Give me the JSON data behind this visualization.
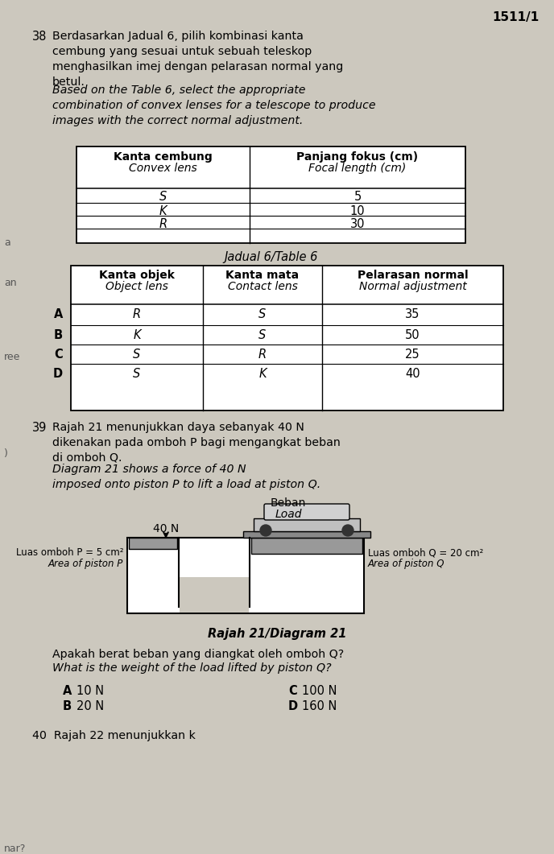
{
  "page_number": "1511/1",
  "bg_color": "#ccc8be",
  "q38_num": "38",
  "q38_malay": "Berdasarkan Jadual 6, pilih kombinasi kanta\ncembung yang sesuai untuk sebuah teleskop\nmenghasilkan imej dengan pelarasan normal yang\nbetul.",
  "q38_eng": "Based on the Table 6, select the appropriate\ncombination of convex lenses for a telescope to produce\nimages with the correct normal adjustment.",
  "t6_h1": "Kanta cembung",
  "t6_h1i": "Convex lens",
  "t6_h2": "Panjang fokus (cm)",
  "t6_h2i": "Focal length (cm)",
  "t6_rows": [
    [
      "S",
      "5"
    ],
    [
      "K",
      "10"
    ],
    [
      "R",
      "30"
    ]
  ],
  "t6_caption": "Jadual 6/Table 6",
  "t7_h1": "Kanta objek",
  "t7_h1i": "Object lens",
  "t7_h2": "Kanta mata",
  "t7_h2i": "Contact lens",
  "t7_h3": "Pelarasan normal",
  "t7_h3i": "Normal adjustment",
  "t7_rows": [
    [
      "A",
      "R",
      "S",
      "35"
    ],
    [
      "B",
      "K",
      "S",
      "50"
    ],
    [
      "C",
      "S",
      "R",
      "25"
    ],
    [
      "D",
      "S",
      "K",
      "40"
    ]
  ],
  "q39_num": "39",
  "q39_malay": "Rajah 21 menunjukkan daya sebanyak 40 N\ndikenakan pada omboh P bagi mengangkat beban\ndi omboh Q.",
  "q39_eng": "Diagram 21 shows a force of 40 N\nimposed onto piston P to lift a load at piston Q.",
  "beban": "Beban",
  "load": "Load",
  "force": "40 N",
  "luas_p": "Luas omboh P = 5 cm²",
  "area_p": "Area of piston P",
  "luas_q": "Luas omboh Q = 20 cm²",
  "area_q": "Area of piston Q",
  "diag_cap": "Rajah 21/Diagram 21",
  "q39_qm": "Apakah berat beban yang diangkat oleh omboh Q?",
  "q39_qe": "What is the weight of the load lifted by piston Q?",
  "opts": [
    [
      "A",
      "10 N",
      "C",
      "100 N"
    ],
    [
      "B",
      "20 N",
      "D",
      "160 N"
    ]
  ],
  "q40_start": "40  Rajah 22 menunjukkan k",
  "edge_labels": [
    [
      "a",
      295
    ],
    [
      "an",
      345
    ],
    [
      "ree",
      437
    ],
    [
      ")",
      557
    ],
    [
      "nar?",
      1048
    ]
  ]
}
